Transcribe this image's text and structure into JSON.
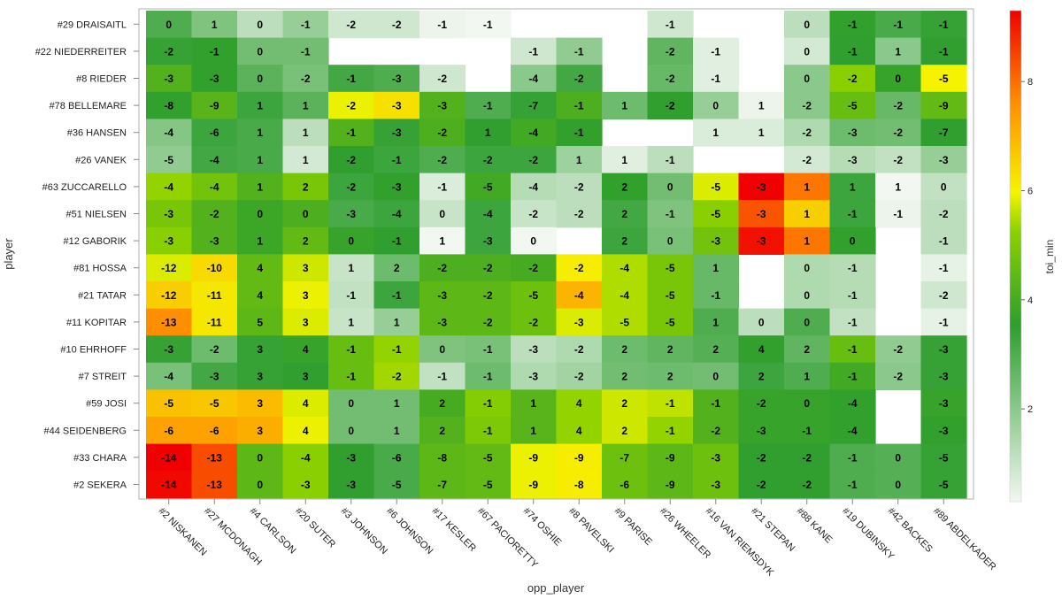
{
  "chart_data": {
    "type": "heatmap",
    "xlabel": "opp_player",
    "ylabel": "player",
    "legend_title": "toi_min",
    "legend_ticks": [
      "2",
      "4",
      "6",
      "8"
    ],
    "color_range": [
      0.3,
      9.3
    ],
    "colors": {
      "low": "#f2f7f2",
      "mid": "#2e9e2e",
      "high_yellow": "#f5f500",
      "high_red": "#f00000"
    },
    "rows": [
      "#29 DRAISAITL",
      "#22 NIEDERREITER",
      "#8 RIEDER",
      "#78 BELLEMARE",
      "#36 HANSEN",
      "#26 VANEK",
      "#63 ZUCCARELLO",
      "#51 NIELSEN",
      "#12 GABORIK",
      "#81 HOSSA",
      "#21 TATAR",
      "#11 KOPITAR",
      "#10 EHRHOFF",
      "#7 STREIT",
      "#59 JOSI",
      "#44 SEIDENBERG",
      "#33 CHARA",
      "#2 SEKERA"
    ],
    "columns": [
      "#2 NISKANEN",
      "#27 MCDONAGH",
      "#4 CARLSON",
      "#20 SUTER",
      "#3 JOHNSON",
      "#6 JOHNSON",
      "#17 KESLER",
      "#67 PACIORETTY",
      "#74 OSHIE",
      "#8 PAVELSKI",
      "#9 PARISE",
      "#26 WHEELER",
      "#16 VAN RIEMSDYK",
      "#21 STEPAN",
      "#88 KANE",
      "#19 DUBINSKY",
      "#42 BACKES",
      "#89 ABDELKADER"
    ],
    "labels": [
      [
        "0",
        "1",
        "0",
        "-1",
        "-2",
        "-2",
        "-1",
        "-1",
        "",
        "",
        "",
        "-1",
        "",
        "",
        "0",
        "-1",
        "-1",
        "-1"
      ],
      [
        "-2",
        "-1",
        "0",
        "-1",
        "",
        "",
        "",
        "",
        "-1",
        "-1",
        "",
        "-2",
        "-1",
        "",
        "0",
        "-1",
        "1",
        "-1"
      ],
      [
        "-3",
        "-3",
        "0",
        "-2",
        "-1",
        "-3",
        "-2",
        "",
        "-4",
        "-2",
        "",
        "-2",
        "-1",
        "",
        "0",
        "-2",
        "0",
        "-5"
      ],
      [
        "-8",
        "-9",
        "1",
        "1",
        "-2",
        "-3",
        "-3",
        "-1",
        "-7",
        "-1",
        "1",
        "-2",
        "0",
        "1",
        "-2",
        "-5",
        "-2",
        "-9"
      ],
      [
        "-4",
        "-6",
        "1",
        "1",
        "-1",
        "-3",
        "-2",
        "1",
        "-4",
        "-1",
        "",
        "",
        "1",
        "1",
        "-2",
        "-3",
        "-2",
        "-7"
      ],
      [
        "-5",
        "-4",
        "1",
        "1",
        "-2",
        "-1",
        "-2",
        "-2",
        "-2",
        "1",
        "1",
        "-1",
        "",
        "",
        "-2",
        "-3",
        "-2",
        "-3"
      ],
      [
        "-4",
        "-4",
        "1",
        "2",
        "-2",
        "-3",
        "-1",
        "-5",
        "-4",
        "-2",
        "2",
        "0",
        "-5",
        "-3",
        "1",
        "1",
        "1",
        "0"
      ],
      [
        "-3",
        "-2",
        "0",
        "0",
        "-3",
        "-4",
        "0",
        "-4",
        "-2",
        "-2",
        "2",
        "-1",
        "-5",
        "-3",
        "1",
        "-1",
        "-1",
        "-2"
      ],
      [
        "-3",
        "-3",
        "1",
        "2",
        "0",
        "-1",
        "1",
        "-3",
        "0",
        "",
        "2",
        "0",
        "-3",
        "-3",
        "1",
        "0",
        "",
        "-1"
      ],
      [
        "-12",
        "-10",
        "4",
        "3",
        "1",
        "2",
        "-2",
        "-2",
        "-2",
        "-2",
        "-4",
        "-5",
        "1",
        "",
        "0",
        "-1",
        "",
        "-1"
      ],
      [
        "-12",
        "-11",
        "4",
        "3",
        "-1",
        "-1",
        "-3",
        "-2",
        "-5",
        "-4",
        "-4",
        "-5",
        "-1",
        "",
        "0",
        "-1",
        "",
        "-2"
      ],
      [
        "-13",
        "-11",
        "5",
        "3",
        "1",
        "1",
        "-3",
        "-2",
        "-2",
        "-3",
        "-5",
        "-5",
        "1",
        "0",
        "0",
        "-1",
        "",
        "-1"
      ],
      [
        "-3",
        "-2",
        "3",
        "4",
        "-1",
        "-1",
        "0",
        "-1",
        "-3",
        "-2",
        "2",
        "2",
        "2",
        "4",
        "2",
        "-1",
        "-2",
        "-3"
      ],
      [
        "-4",
        "-3",
        "3",
        "3",
        "-1",
        "-2",
        "-1",
        "-1",
        "-3",
        "-2",
        "2",
        "2",
        "0",
        "2",
        "1",
        "-1",
        "-2",
        "-3"
      ],
      [
        "-5",
        "-5",
        "3",
        "4",
        "0",
        "1",
        "2",
        "-1",
        "1",
        "4",
        "2",
        "-1",
        "-1",
        "-2",
        "0",
        "-4",
        "",
        "-3"
      ],
      [
        "-6",
        "-6",
        "3",
        "4",
        "0",
        "1",
        "2",
        "-1",
        "1",
        "4",
        "2",
        "-1",
        "-2",
        "-3",
        "-1",
        "-4",
        "",
        "-3"
      ],
      [
        "-14",
        "-13",
        "0",
        "-4",
        "-3",
        "-6",
        "-8",
        "-5",
        "-9",
        "-9",
        "-7",
        "-9",
        "-3",
        "-2",
        "-2",
        "-1",
        "0",
        "-5"
      ],
      [
        "-14",
        "-13",
        "0",
        "-3",
        "-3",
        "-5",
        "-7",
        "-5",
        "-9",
        "-8",
        "-6",
        "-9",
        "-3",
        "-2",
        "-2",
        "-1",
        "0",
        "-5"
      ]
    ],
    "values": [
      [
        3.0,
        2.2,
        1.2,
        1.8,
        0.9,
        0.9,
        0.4,
        0.3,
        null,
        null,
        null,
        0.9,
        null,
        null,
        1.2,
        3.6,
        3.1,
        3.4
      ],
      [
        3.4,
        3.6,
        2.4,
        2.4,
        null,
        null,
        null,
        null,
        0.9,
        1.9,
        null,
        2.7,
        0.6,
        null,
        0.8,
        3.5,
        2.0,
        3.5
      ],
      [
        4.2,
        3.6,
        2.8,
        2.3,
        3.2,
        3.0,
        0.9,
        null,
        2.0,
        3.2,
        null,
        2.6,
        0.6,
        null,
        2.0,
        5.2,
        3.7,
        6.0
      ],
      [
        3.6,
        4.3,
        3.3,
        2.8,
        5.9,
        6.3,
        4.2,
        3.0,
        3.4,
        4.1,
        2.5,
        3.5,
        1.8,
        0.4,
        2.0,
        4.6,
        2.6,
        4.5
      ],
      [
        2.1,
        3.3,
        3.1,
        1.2,
        4.2,
        3.4,
        4.1,
        3.5,
        3.9,
        3.6,
        null,
        null,
        0.7,
        0.7,
        1.4,
        2.5,
        2.4,
        3.5
      ],
      [
        1.9,
        3.2,
        3.1,
        0.8,
        3.5,
        3.3,
        3.0,
        3.3,
        3.3,
        1.7,
        0.6,
        1.2,
        null,
        null,
        0.8,
        1.3,
        1.1,
        1.8
      ],
      [
        5.3,
        4.8,
        4.2,
        4.9,
        3.3,
        3.6,
        0.7,
        3.9,
        1.3,
        1.2,
        3.6,
        2.4,
        5.8,
        9.3,
        7.9,
        3.3,
        0.0,
        1.1
      ],
      [
        4.9,
        4.2,
        3.8,
        4.1,
        3.1,
        3.3,
        1.0,
        3.3,
        1.0,
        1.2,
        3.2,
        2.2,
        5.2,
        8.3,
        6.6,
        3.3,
        0.4,
        1.2
      ],
      [
        5.2,
        4.2,
        3.8,
        4.5,
        3.7,
        3.5,
        0.1,
        3.3,
        0.1,
        null,
        3.3,
        2.3,
        4.8,
        9.1,
        7.9,
        3.6,
        null,
        1.2
      ],
      [
        5.8,
        6.4,
        4.5,
        5.7,
        1.0,
        2.5,
        4.1,
        4.1,
        4.0,
        6.1,
        5.5,
        4.9,
        2.6,
        null,
        1.4,
        1.3,
        null,
        0.5
      ],
      [
        6.6,
        6.2,
        4.5,
        5.9,
        1.1,
        3.3,
        4.4,
        4.4,
        4.7,
        7.0,
        5.5,
        4.9,
        2.6,
        null,
        1.4,
        1.3,
        null,
        0.9
      ],
      [
        7.6,
        6.2,
        4.4,
        5.8,
        1.0,
        1.8,
        4.4,
        4.4,
        4.7,
        5.8,
        5.5,
        4.9,
        3.0,
        1.2,
        3.0,
        1.1,
        null,
        0.5
      ],
      [
        3.4,
        2.5,
        3.4,
        3.7,
        4.6,
        5.3,
        2.2,
        2.3,
        1.2,
        1.4,
        2.5,
        2.7,
        2.9,
        3.6,
        2.7,
        4.6,
        1.9,
        3.4
      ],
      [
        2.3,
        3.2,
        3.4,
        3.5,
        4.6,
        5.4,
        1.1,
        2.5,
        1.4,
        1.6,
        2.4,
        2.5,
        2.4,
        3.3,
        3.0,
        3.9,
        2.0,
        3.4
      ],
      [
        6.8,
        6.7,
        6.9,
        5.8,
        2.4,
        2.4,
        4.0,
        5.1,
        4.3,
        5.3,
        5.7,
        5.6,
        4.2,
        3.7,
        3.7,
        3.6,
        null,
        3.7
      ],
      [
        7.3,
        7.3,
        7.1,
        5.9,
        2.4,
        2.4,
        4.2,
        5.0,
        4.3,
        5.3,
        5.7,
        5.3,
        4.2,
        3.7,
        3.7,
        3.6,
        null,
        3.6
      ],
      [
        9.3,
        8.4,
        4.4,
        5.2,
        3.5,
        3.1,
        4.4,
        4.5,
        5.9,
        6.1,
        4.7,
        4.4,
        4.7,
        3.5,
        3.5,
        3.0,
        2.9,
        3.4
      ],
      [
        9.2,
        8.4,
        4.4,
        5.2,
        3.5,
        3.1,
        4.4,
        4.5,
        5.9,
        6.1,
        4.7,
        4.4,
        4.7,
        3.5,
        3.5,
        3.0,
        2.9,
        3.4
      ]
    ]
  }
}
